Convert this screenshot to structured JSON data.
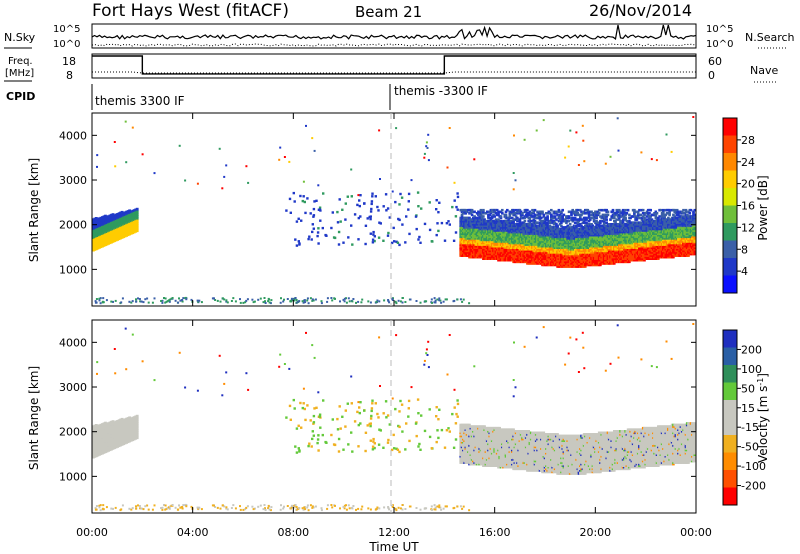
{
  "header": {
    "title": "Fort Hays West (fitACF)",
    "beam": "Beam 21",
    "date": "26/Nov/2014"
  },
  "panels": {
    "nsky_label": "N.Sky",
    "nsearch_label": "N.Search",
    "nsky_ticks": [
      "10^5",
      "10^0"
    ],
    "nsearch_ticks": [
      "10^5",
      "10^0"
    ],
    "freq_label_1": "Freq.",
    "freq_label_2": "[MHz]",
    "freq_ticks": [
      "18",
      "8"
    ],
    "nave_label": "Nave",
    "nave_ticks": [
      "60",
      "0"
    ],
    "cpid_label": "CPID",
    "cpid_1": "themis 3300 IF",
    "cpid_2": "themis -3300 IF"
  },
  "colorbars": {
    "power_label": "Power [dB]",
    "power_ticks": [
      "28",
      "24",
      "20",
      "16",
      "12",
      "8",
      "4"
    ],
    "power_colors": [
      "#ff0000",
      "#ff4400",
      "#ff8800",
      "#ffcc00",
      "#d8e800",
      "#6fbf3a",
      "#2f9a5f",
      "#3a5fa8",
      "#1f38c8",
      "#0a10ff"
    ],
    "velocity_label": "Velocity [m s",
    "velocity_label_sup": "-1",
    "velocity_label_end": "]",
    "velocity_ticks": [
      "200",
      "100",
      "50",
      "15",
      "-15",
      "-50",
      "-100",
      "-200"
    ],
    "velocity_colors": [
      "#1f2fbf",
      "#2a5fa5",
      "#2f8f5a",
      "#63c93a",
      "#c8c8c0",
      "#c8c8c0",
      "#f0b020",
      "#ff8c00",
      "#ff5000",
      "#ff0000"
    ]
  },
  "axes": {
    "ylabel": "Slant Range [km]",
    "xlabel": "Time UT",
    "x_ticks": [
      "00:00",
      "04:00",
      "08:00",
      "12:00",
      "16:00",
      "20:00",
      "00:00"
    ]
  },
  "chart_data": {
    "type": "heatmap",
    "title": "Fort Hays West (fitACF)",
    "xlabel": "Time UT",
    "ylabel": "Slant Range [km]",
    "xlim_hours": [
      0,
      24
    ],
    "ylim": [
      180,
      4500
    ],
    "yticks": [
      1000,
      2000,
      3000,
      4000
    ],
    "cpid_change_hour": 12,
    "nave_levels": [
      {
        "from": 0,
        "to": 2,
        "level": 60
      },
      {
        "from": 2,
        "to": 14,
        "level": 11
      },
      {
        "from": 14,
        "to": 24,
        "level": 60
      }
    ],
    "echo_regions": [
      {
        "name": "early",
        "t_start": 0.0,
        "t_end": 1.8,
        "r_min": 1400,
        "r_max": 2500,
        "power_db": 16,
        "velocity": -15
      },
      {
        "name": "scatter_mid",
        "t_start": 8.0,
        "t_end": 11.0,
        "r_min": 1500,
        "r_max": 2600,
        "power_db": 6,
        "velocity": -50
      },
      {
        "name": "afternoon_band",
        "t_start": 14.5,
        "t_end": 24.0,
        "r_min": 1000,
        "r_max": 2300,
        "power_db": 24,
        "velocity": -15
      }
    ]
  }
}
